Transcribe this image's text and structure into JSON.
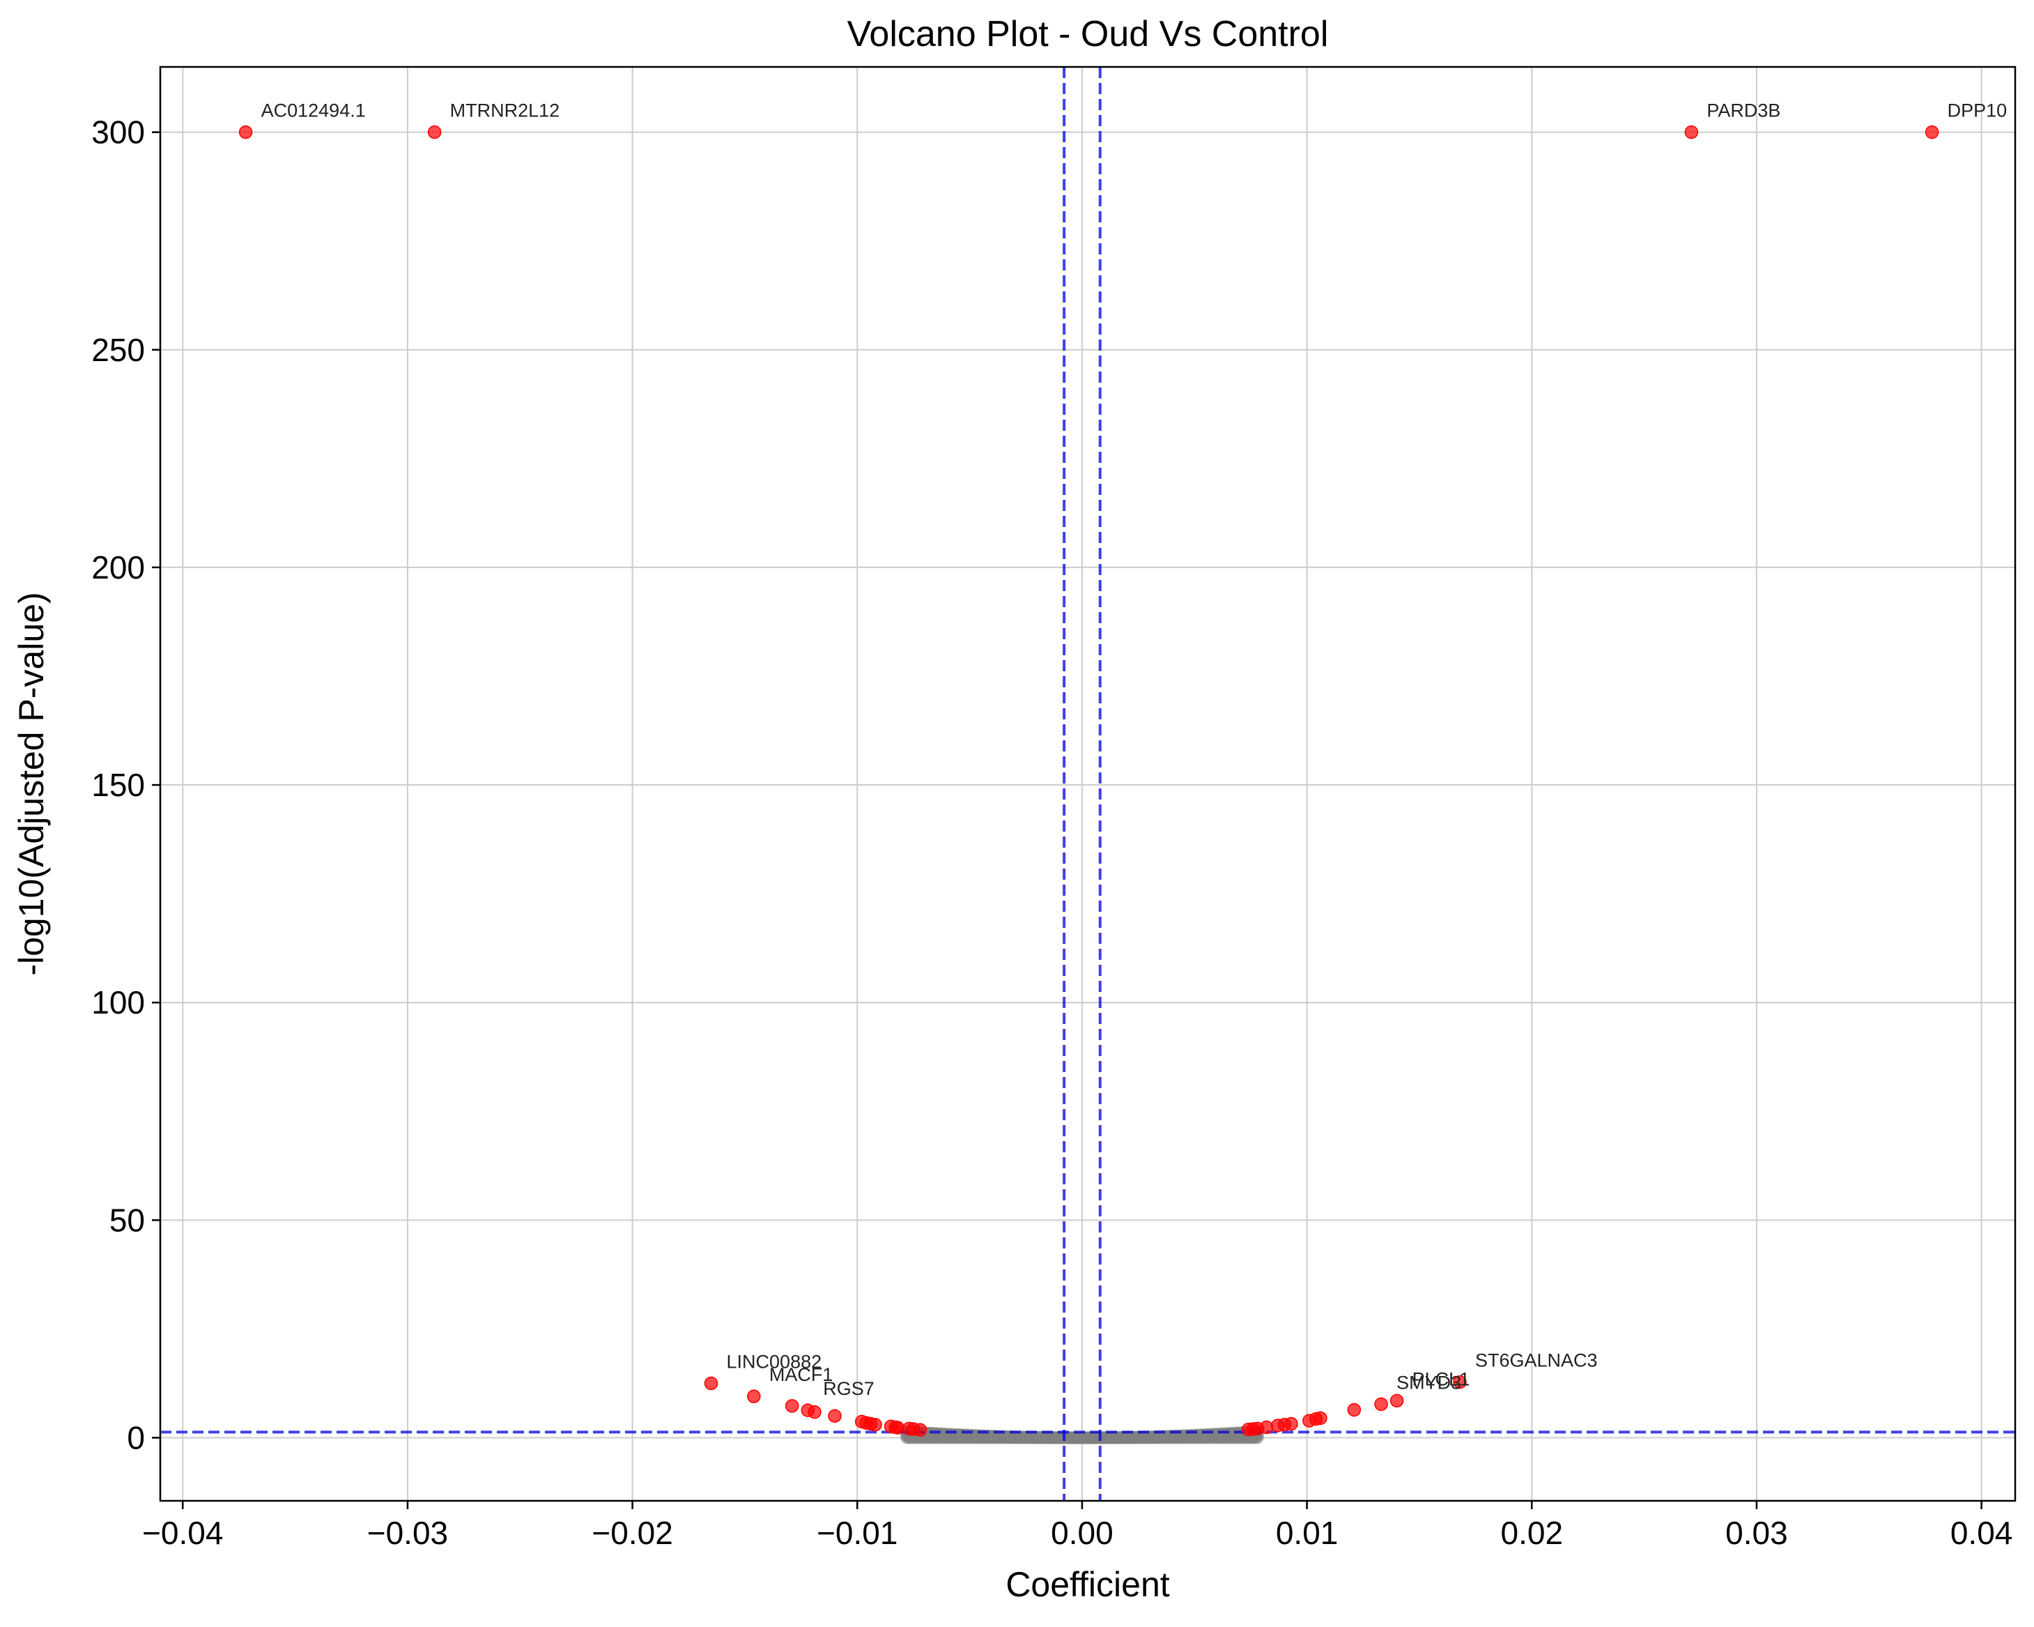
{
  "chart_data": {
    "type": "scatter",
    "title": "Volcano Plot - Oud Vs Control",
    "xlabel": "Coefficient",
    "ylabel": "-log10(Adjusted P-value)",
    "xlim": [
      -0.041,
      0.0415
    ],
    "ylim": [
      -14.5,
      315
    ],
    "x_ticks": [
      -0.04,
      -0.03,
      -0.02,
      -0.01,
      0.0,
      0.01,
      0.02,
      0.03,
      0.04
    ],
    "x_tick_labels": [
      "−0.04",
      "−0.03",
      "−0.02",
      "−0.01",
      "0.00",
      "0.01",
      "0.02",
      "0.03",
      "0.04"
    ],
    "y_ticks": [
      0,
      50,
      100,
      150,
      200,
      250,
      300
    ],
    "y_tick_labels": [
      "0",
      "50",
      "100",
      "150",
      "200",
      "250",
      "300"
    ],
    "grid": true,
    "thresholds": {
      "coef_lines": [
        -0.0008,
        0.0008
      ],
      "pval_line": 1.3
    },
    "colors": {
      "significant": "#ff0000",
      "not_significant": "#808080",
      "threshold_line": "#0000dd",
      "grid": "#cccccc"
    },
    "significant_points": [
      {
        "x": -0.0372,
        "y": 300
      },
      {
        "x": -0.0288,
        "y": 300
      },
      {
        "x": 0.0271,
        "y": 300
      },
      {
        "x": 0.0378,
        "y": 300
      },
      {
        "x": -0.0165,
        "y": 12.5
      },
      {
        "x": -0.0146,
        "y": 9.5
      },
      {
        "x": -0.0129,
        "y": 7.3
      },
      {
        "x": -0.0122,
        "y": 6.3
      },
      {
        "x": -0.0119,
        "y": 5.9
      },
      {
        "x": -0.011,
        "y": 5.0
      },
      {
        "x": -0.0098,
        "y": 3.7
      },
      {
        "x": -0.0096,
        "y": 3.4
      },
      {
        "x": -0.0094,
        "y": 3.2
      },
      {
        "x": -0.0092,
        "y": 3.0
      },
      {
        "x": -0.0085,
        "y": 2.6
      },
      {
        "x": -0.0083,
        "y": 2.4
      },
      {
        "x": -0.0082,
        "y": 2.3
      },
      {
        "x": -0.0077,
        "y": 2.1
      },
      {
        "x": -0.0075,
        "y": 2.0
      },
      {
        "x": -0.0072,
        "y": 1.8
      },
      {
        "x": 0.0074,
        "y": 1.9
      },
      {
        "x": 0.0076,
        "y": 2.0
      },
      {
        "x": 0.0078,
        "y": 2.1
      },
      {
        "x": 0.0082,
        "y": 2.4
      },
      {
        "x": 0.0087,
        "y": 2.8
      },
      {
        "x": 0.009,
        "y": 3.0
      },
      {
        "x": 0.0093,
        "y": 3.2
      },
      {
        "x": 0.0101,
        "y": 3.9
      },
      {
        "x": 0.0104,
        "y": 4.3
      },
      {
        "x": 0.0106,
        "y": 4.5
      },
      {
        "x": 0.0121,
        "y": 6.4
      },
      {
        "x": 0.0133,
        "y": 7.7
      },
      {
        "x": 0.014,
        "y": 8.5
      },
      {
        "x": 0.0168,
        "y": 12.8
      }
    ],
    "annotations": [
      {
        "text": "AC012494.1",
        "x": -0.0372,
        "y": 300
      },
      {
        "text": "MTRNR2L12",
        "x": -0.0288,
        "y": 300
      },
      {
        "text": "PARD3B",
        "x": 0.0271,
        "y": 300
      },
      {
        "text": "DPP10",
        "x": 0.0378,
        "y": 300
      },
      {
        "text": "LINC00882",
        "x": -0.0165,
        "y": 12.5
      },
      {
        "text": "MACF1",
        "x": -0.0146,
        "y": 9.5
      },
      {
        "text": "RGS7",
        "x": -0.0122,
        "y": 6.3
      },
      {
        "text": "PLCL1",
        "x": 0.014,
        "y": 8.5
      },
      {
        "text": "SMYD3",
        "x": 0.0133,
        "y": 7.7
      },
      {
        "text": "ST6GALNAC3",
        "x": 0.0168,
        "y": 12.8
      }
    ]
  }
}
